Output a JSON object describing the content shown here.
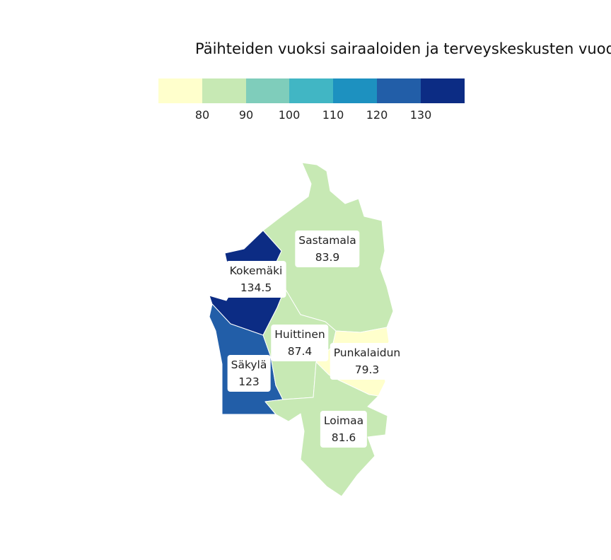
{
  "title": "Päihteiden vuoksi sairaaloiden ja terveyskeskusten vuode",
  "legend": {
    "colors": [
      "#ffffcc",
      "#c7e9b4",
      "#7fcdbb",
      "#41b6c4",
      "#1d91c0",
      "#225ea8",
      "#0c2c84"
    ],
    "ticks": [
      "80",
      "90",
      "100",
      "110",
      "120",
      "130"
    ]
  },
  "regions": [
    {
      "name": "Sastamala",
      "value": "83.9",
      "color": "#c7e9b4"
    },
    {
      "name": "Kokemäki",
      "value": "134.5",
      "color": "#0c2c84"
    },
    {
      "name": "Huittinen",
      "value": "87.4",
      "color": "#c7e9b4"
    },
    {
      "name": "Punkalaidun",
      "value": "79.3",
      "color": "#ffffcc"
    },
    {
      "name": "Säkylä",
      "value": "123",
      "color": "#225ea8"
    },
    {
      "name": "Loimaa",
      "value": "81.6",
      "color": "#c7e9b4"
    }
  ]
}
